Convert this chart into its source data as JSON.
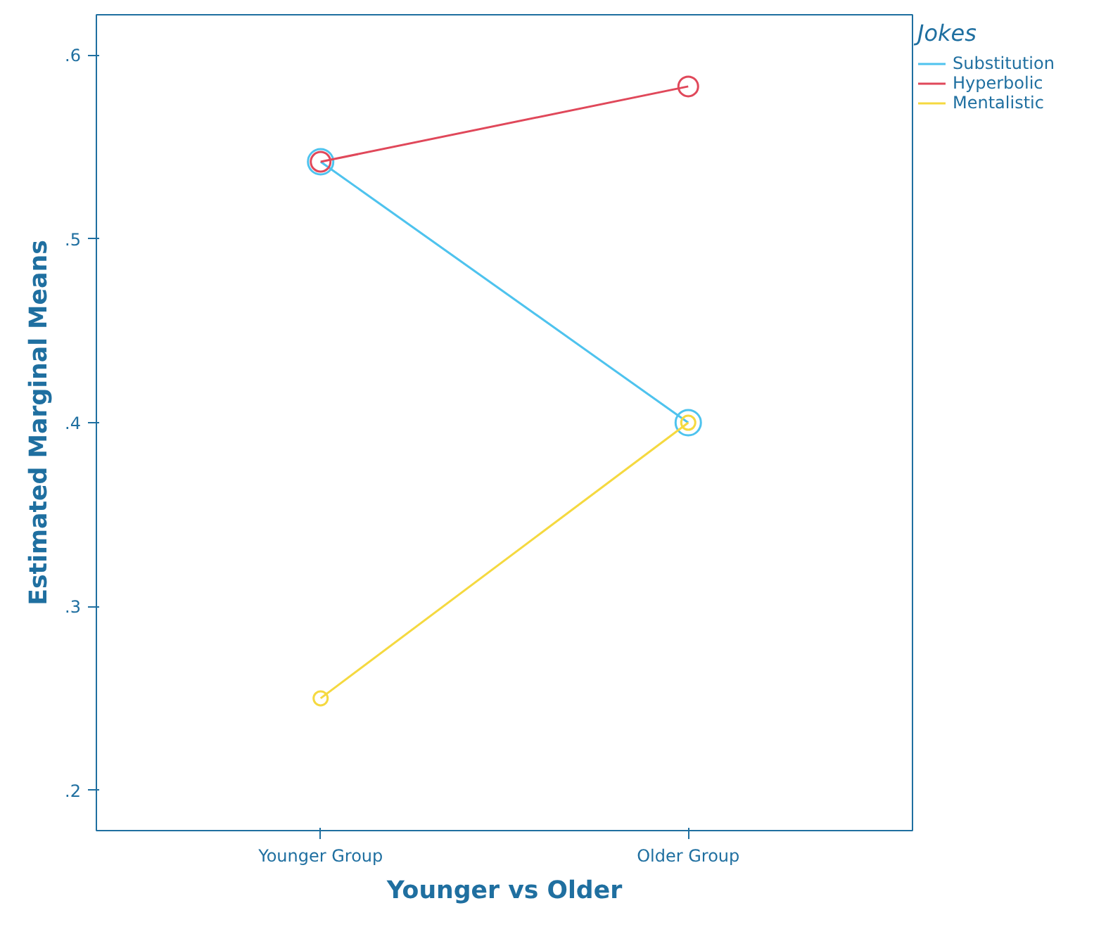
{
  "chart_data": {
    "type": "line",
    "xlabel": "Younger vs Older",
    "ylabel": "Estimated Marginal Means",
    "legend_title": "Jokes",
    "categories": [
      "Younger Group",
      "Older Group"
    ],
    "series": [
      {
        "name": "Substitution",
        "color": "#4ec3ee",
        "values": [
          0.542,
          0.4
        ]
      },
      {
        "name": "Hyperbolic",
        "color": "#e0485a",
        "values": [
          0.542,
          0.583
        ]
      },
      {
        "name": "Mentalistic",
        "color": "#f5d940",
        "values": [
          0.25,
          0.4
        ]
      }
    ],
    "ylim": [
      0.178,
      0.622
    ],
    "yticks": [
      {
        "value": 0.2,
        "label": ".2"
      },
      {
        "value": 0.3,
        "label": ".3"
      },
      {
        "value": 0.4,
        "label": ".4"
      },
      {
        "value": 0.5,
        "label": ".5"
      },
      {
        "value": 0.6,
        "label": ".6"
      }
    ],
    "grid": false,
    "legend": "top right",
    "marker": "circle",
    "line_style": "solid"
  }
}
